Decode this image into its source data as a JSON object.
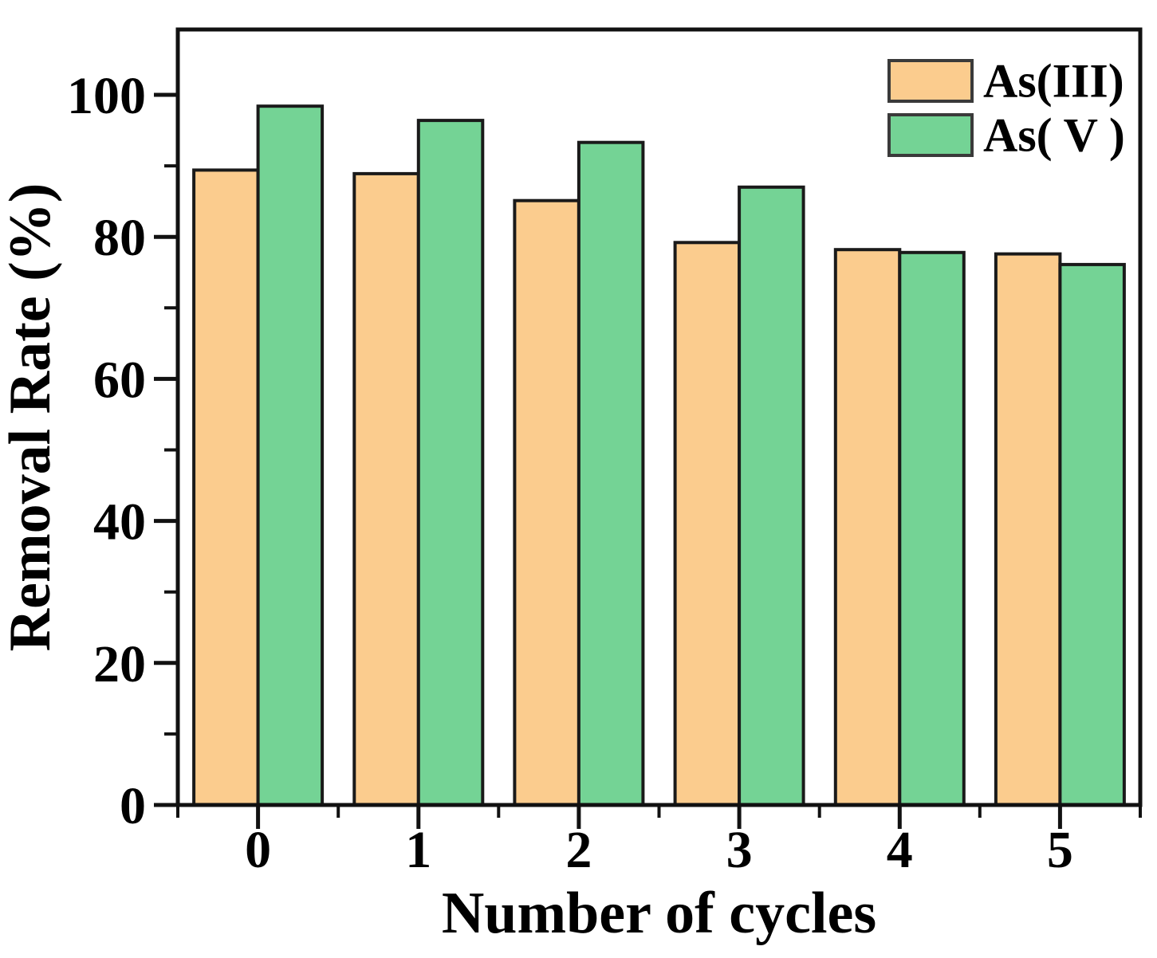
{
  "page": {
    "background": "#ffffff"
  },
  "chart_data": {
    "type": "bar",
    "title": "",
    "xlabel": "Number of cycles",
    "ylabel": "Removal Rate (%)",
    "categories": [
      "0",
      "1",
      "2",
      "3",
      "4",
      "5"
    ],
    "series": [
      {
        "name": "As(III)",
        "legend_label": "As(III)",
        "color": "#FBCC8E",
        "edge_color": "#1A1A1A",
        "values": [
          89.4,
          88.9,
          85.1,
          79.2,
          78.2,
          77.6
        ]
      },
      {
        "name": "As(V)",
        "legend_label": "As( V )",
        "color": "#74D395",
        "edge_color": "#1A1A1A",
        "values": [
          98.4,
          96.4,
          93.3,
          87.0,
          77.8,
          76.1
        ]
      }
    ],
    "ylim": [
      0,
      109.2
    ],
    "yticks": [
      0,
      20,
      40,
      60,
      80,
      100
    ],
    "y_minor_step": 10,
    "x_minor_ticks": "group-boundaries",
    "grid": false,
    "legend_position": "top-right",
    "legend_frame": false,
    "axis_color": "#111111",
    "legend_swatch_border": "#3A3A3A",
    "text_color": "#000000"
  }
}
